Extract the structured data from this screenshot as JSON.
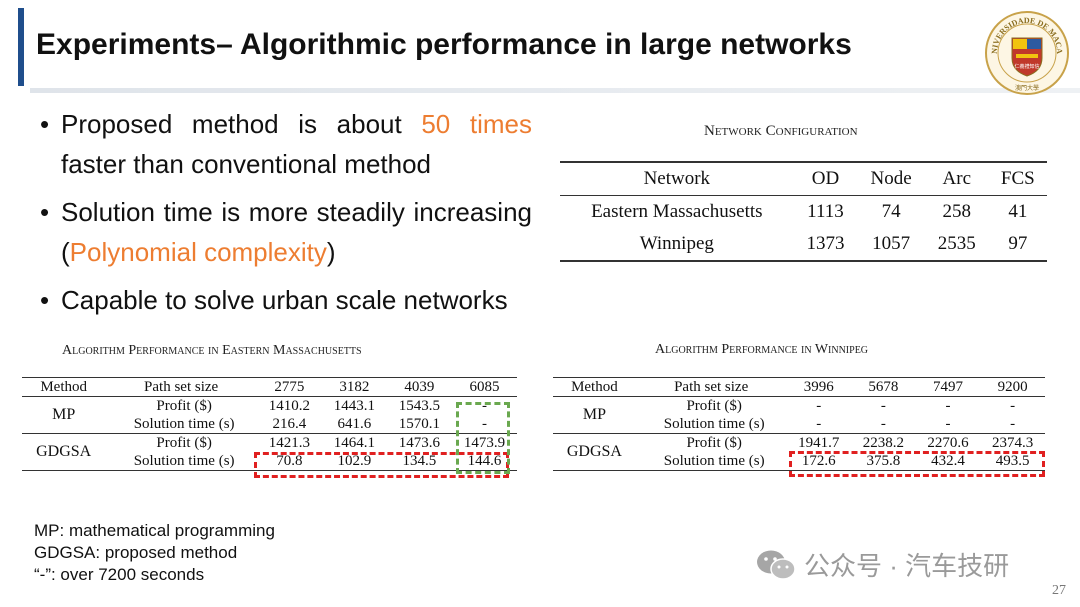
{
  "slide": {
    "title": "Experiments– Algorithmic performance in large networks",
    "page_number": "27"
  },
  "logo": {
    "ring_text": "UNIVERSIDADE DE MACAU",
    "bottom_text": "澳門大學",
    "motto": "仁義禮知信"
  },
  "bullets": [
    {
      "pre": "Proposed method is about ",
      "highlight": "50 times",
      "post": " faster than conventional method"
    },
    {
      "pre": "Solution time is more steadily increasing (",
      "highlight": "Polynomial complexity",
      "post": ")"
    },
    {
      "pre": "Capable to solve urban scale networks",
      "highlight": "",
      "post": ""
    }
  ],
  "network_config": {
    "caption": "Network Configuration",
    "headers": [
      "Network",
      "OD",
      "Node",
      "Arc",
      "FCS"
    ],
    "rows": [
      [
        "Eastern Massachusetts",
        "1113",
        "74",
        "258",
        "41"
      ],
      [
        "Winnipeg",
        "1373",
        "1057",
        "2535",
        "97"
      ]
    ]
  },
  "perf_em": {
    "caption": "Algorithm Performance in Eastern Massachusetts",
    "headers": [
      "Method",
      "Path set size",
      "2775",
      "3182",
      "4039",
      "6085"
    ],
    "groups": [
      {
        "method": "MP",
        "rows": [
          {
            "label": "Profit ($)",
            "values": [
              "1410.2",
              "1443.1",
              "1543.5",
              "-"
            ]
          },
          {
            "label": "Solution time (s)",
            "values": [
              "216.4",
              "641.6",
              "1570.1",
              "-"
            ]
          }
        ]
      },
      {
        "method": "GDGSA",
        "rows": [
          {
            "label": "Profit ($)",
            "values": [
              "1421.3",
              "1464.1",
              "1473.6",
              "1473.9"
            ]
          },
          {
            "label": "Solution time (s)",
            "values": [
              "70.8",
              "102.9",
              "134.5",
              "144.6"
            ]
          }
        ]
      }
    ]
  },
  "perf_wp": {
    "caption": "Algorithm Performance in Winnipeg",
    "headers": [
      "Method",
      "Path set size",
      "3996",
      "5678",
      "7497",
      "9200"
    ],
    "groups": [
      {
        "method": "MP",
        "rows": [
          {
            "label": "Profit ($)",
            "values": [
              "-",
              "-",
              "-",
              "-"
            ]
          },
          {
            "label": "Solution time (s)",
            "values": [
              "-",
              "-",
              "-",
              "-"
            ]
          }
        ]
      },
      {
        "method": "GDGSA",
        "rows": [
          {
            "label": "Profit ($)",
            "values": [
              "1941.7",
              "2238.2",
              "2270.6",
              "2374.3"
            ]
          },
          {
            "label": "Solution time (s)",
            "values": [
              "172.6",
              "375.8",
              "432.4",
              "493.5"
            ]
          }
        ]
      }
    ]
  },
  "notes": [
    "MP: mathematical programming",
    "GDGSA: proposed method",
    "“-”: over 7200 seconds"
  ],
  "watermark": {
    "icon": "wechat-icon",
    "text": "公众号 · 汽车技研"
  },
  "colors": {
    "accent_bar": "#1f4e8c",
    "highlight": "#ed7d31",
    "dash_red": "#e02020",
    "dash_green": "#6aa84f"
  }
}
